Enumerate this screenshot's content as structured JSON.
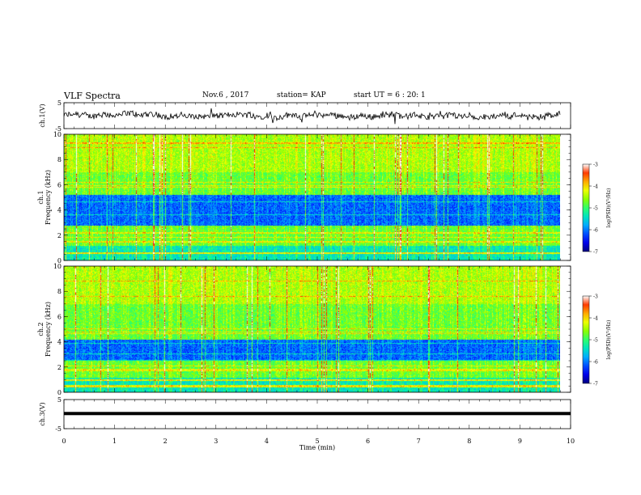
{
  "header": {
    "title": "VLF Spectra",
    "date": "Nov.6 , 2017",
    "station": "station= KAP",
    "start": "start UT = 6 : 20: 1"
  },
  "chart_data": [
    {
      "type": "line",
      "name": "ch1-waveform",
      "ylabel": "ch.1(V)",
      "ylim": [
        -5,
        5
      ],
      "yticks": [
        "5",
        "-5"
      ],
      "xlim": [
        0,
        10
      ],
      "trace_level_approx": 0,
      "trace_end_min": 9.8
    },
    {
      "type": "heatmap",
      "name": "ch1-spectrogram",
      "ylabel_line1": "ch.1",
      "ylabel_line2": "Frequency (kHz)",
      "ylim": [
        0,
        10
      ],
      "yticks": [
        "0",
        "2",
        "4",
        "6",
        "8",
        "10"
      ],
      "xlim": [
        0,
        10
      ],
      "data_end_min": 9.8,
      "colorbar": {
        "label": "log(PSD)(V²/Hz)",
        "range": [
          -7,
          -3
        ],
        "ticks": [
          "-3",
          "-4",
          "-5",
          "-6",
          "-7"
        ],
        "colors": [
          "#000080",
          "#0000ff",
          "#00a0ff",
          "#00ffa0",
          "#a0ff00",
          "#ffff00",
          "#ff8000",
          "#ff0000",
          "#ffffff"
        ]
      },
      "quiet_band_khz": [
        2.8,
        5.2
      ],
      "strong_lines_khz": [
        2.2,
        1.5,
        0.6
      ]
    },
    {
      "type": "heatmap",
      "name": "ch2-spectrogram",
      "ylabel_line1": "ch.2",
      "ylabel_line2": "Frequency (kHz)",
      "ylim": [
        0,
        10
      ],
      "yticks": [
        "0",
        "2",
        "4",
        "6",
        "8",
        "10"
      ],
      "xlim": [
        0,
        10
      ],
      "data_end_min": 9.8,
      "colorbar": {
        "label": "log(PSD)(V²/Hz)",
        "range": [
          -7,
          -3
        ],
        "ticks": [
          "-3",
          "-4",
          "-5",
          "-6",
          "-7"
        ],
        "colors": [
          "#000080",
          "#0000ff",
          "#00a0ff",
          "#00ffa0",
          "#a0ff00",
          "#ffff00",
          "#ff8000",
          "#ff0000",
          "#ffffff"
        ]
      },
      "quiet_band_khz": [
        2.5,
        4.2
      ],
      "strong_lines_khz": [
        1.8,
        1.0,
        0.5
      ]
    },
    {
      "type": "line",
      "name": "ch3-waveform",
      "ylabel": "ch.3(V)",
      "ylim": [
        -5,
        5
      ],
      "yticks": [
        "5",
        "-5"
      ],
      "xlim": [
        0,
        10
      ],
      "trace_level_approx": 0.2
    }
  ],
  "xaxis": {
    "label": "Time (min)",
    "ticks": [
      "0",
      "1",
      "2",
      "3",
      "4",
      "5",
      "6",
      "7",
      "8",
      "9",
      "10"
    ]
  }
}
